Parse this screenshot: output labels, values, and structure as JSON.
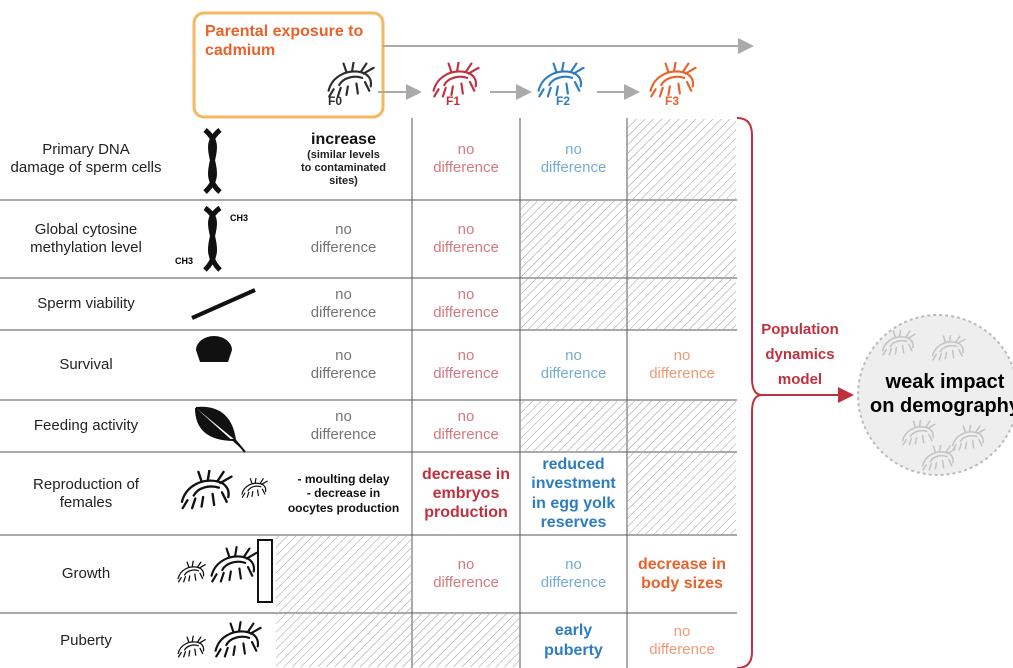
{
  "header": {
    "title": "Parental exposure to cadmium"
  },
  "generations": [
    {
      "label": "F0",
      "color": "#2b2b2b"
    },
    {
      "label": "F1",
      "color": "#c0313f"
    },
    {
      "label": "F2",
      "color": "#2e7dc0"
    },
    {
      "label": "F3",
      "color": "#e8622a"
    }
  ],
  "rows": [
    {
      "label": [
        "Primary DNA",
        "damage of sperm cells"
      ],
      "cells": [
        {
          "lines": [
            "increase"
          ],
          "note": [
            "(similar levels",
            "to contaminated",
            "sites)"
          ],
          "bold": true
        },
        {
          "lines": [
            "no",
            "difference"
          ]
        },
        {
          "lines": [
            "no",
            "difference"
          ]
        },
        null
      ]
    },
    {
      "label": [
        "Global cytosine",
        "methylation level"
      ],
      "icon_labels": [
        "CH3",
        "CH3"
      ],
      "cells": [
        {
          "lines": [
            "no",
            "difference"
          ]
        },
        {
          "lines": [
            "no",
            "difference"
          ]
        },
        null,
        null
      ]
    },
    {
      "label": [
        "Sperm viability"
      ],
      "cells": [
        {
          "lines": [
            "no",
            "difference"
          ]
        },
        {
          "lines": [
            "no",
            "difference"
          ]
        },
        null,
        null
      ]
    },
    {
      "label": [
        "Survival"
      ],
      "cells": [
        {
          "lines": [
            "no",
            "difference"
          ]
        },
        {
          "lines": [
            "no",
            "difference"
          ]
        },
        {
          "lines": [
            "no",
            "difference"
          ]
        },
        {
          "lines": [
            "no",
            "difference"
          ]
        }
      ]
    },
    {
      "label": [
        "Feeding activity"
      ],
      "cells": [
        {
          "lines": [
            "no",
            "difference"
          ]
        },
        {
          "lines": [
            "no",
            "difference"
          ]
        },
        null,
        null
      ]
    },
    {
      "label": [
        "Reproduction of",
        "females"
      ],
      "cells": [
        {
          "lines": [
            "- moulting delay",
            "- decrease in",
            "oocytes production"
          ],
          "bold": true,
          "small": true
        },
        {
          "lines": [
            "decrease in",
            "embryos",
            "production"
          ],
          "bold": true
        },
        {
          "lines": [
            "reduced",
            "investment",
            "in egg yolk",
            "reserves"
          ],
          "bold": true
        },
        null
      ]
    },
    {
      "label": [
        "Growth"
      ],
      "cells": [
        null,
        {
          "lines": [
            "no",
            "difference"
          ]
        },
        {
          "lines": [
            "no",
            "difference"
          ]
        },
        {
          "lines": [
            "decrease in",
            "body sizes"
          ],
          "bold": true
        }
      ]
    },
    {
      "label": [
        "Puberty"
      ],
      "cells": [
        null,
        null,
        {
          "lines": [
            "early",
            "puberty"
          ],
          "bold": true
        },
        {
          "lines": [
            "no",
            "difference"
          ]
        }
      ]
    }
  ],
  "model": {
    "label": [
      "Population",
      "dynamics",
      "model"
    ]
  },
  "outcome": {
    "label": [
      "weak impact",
      "on demography"
    ]
  }
}
